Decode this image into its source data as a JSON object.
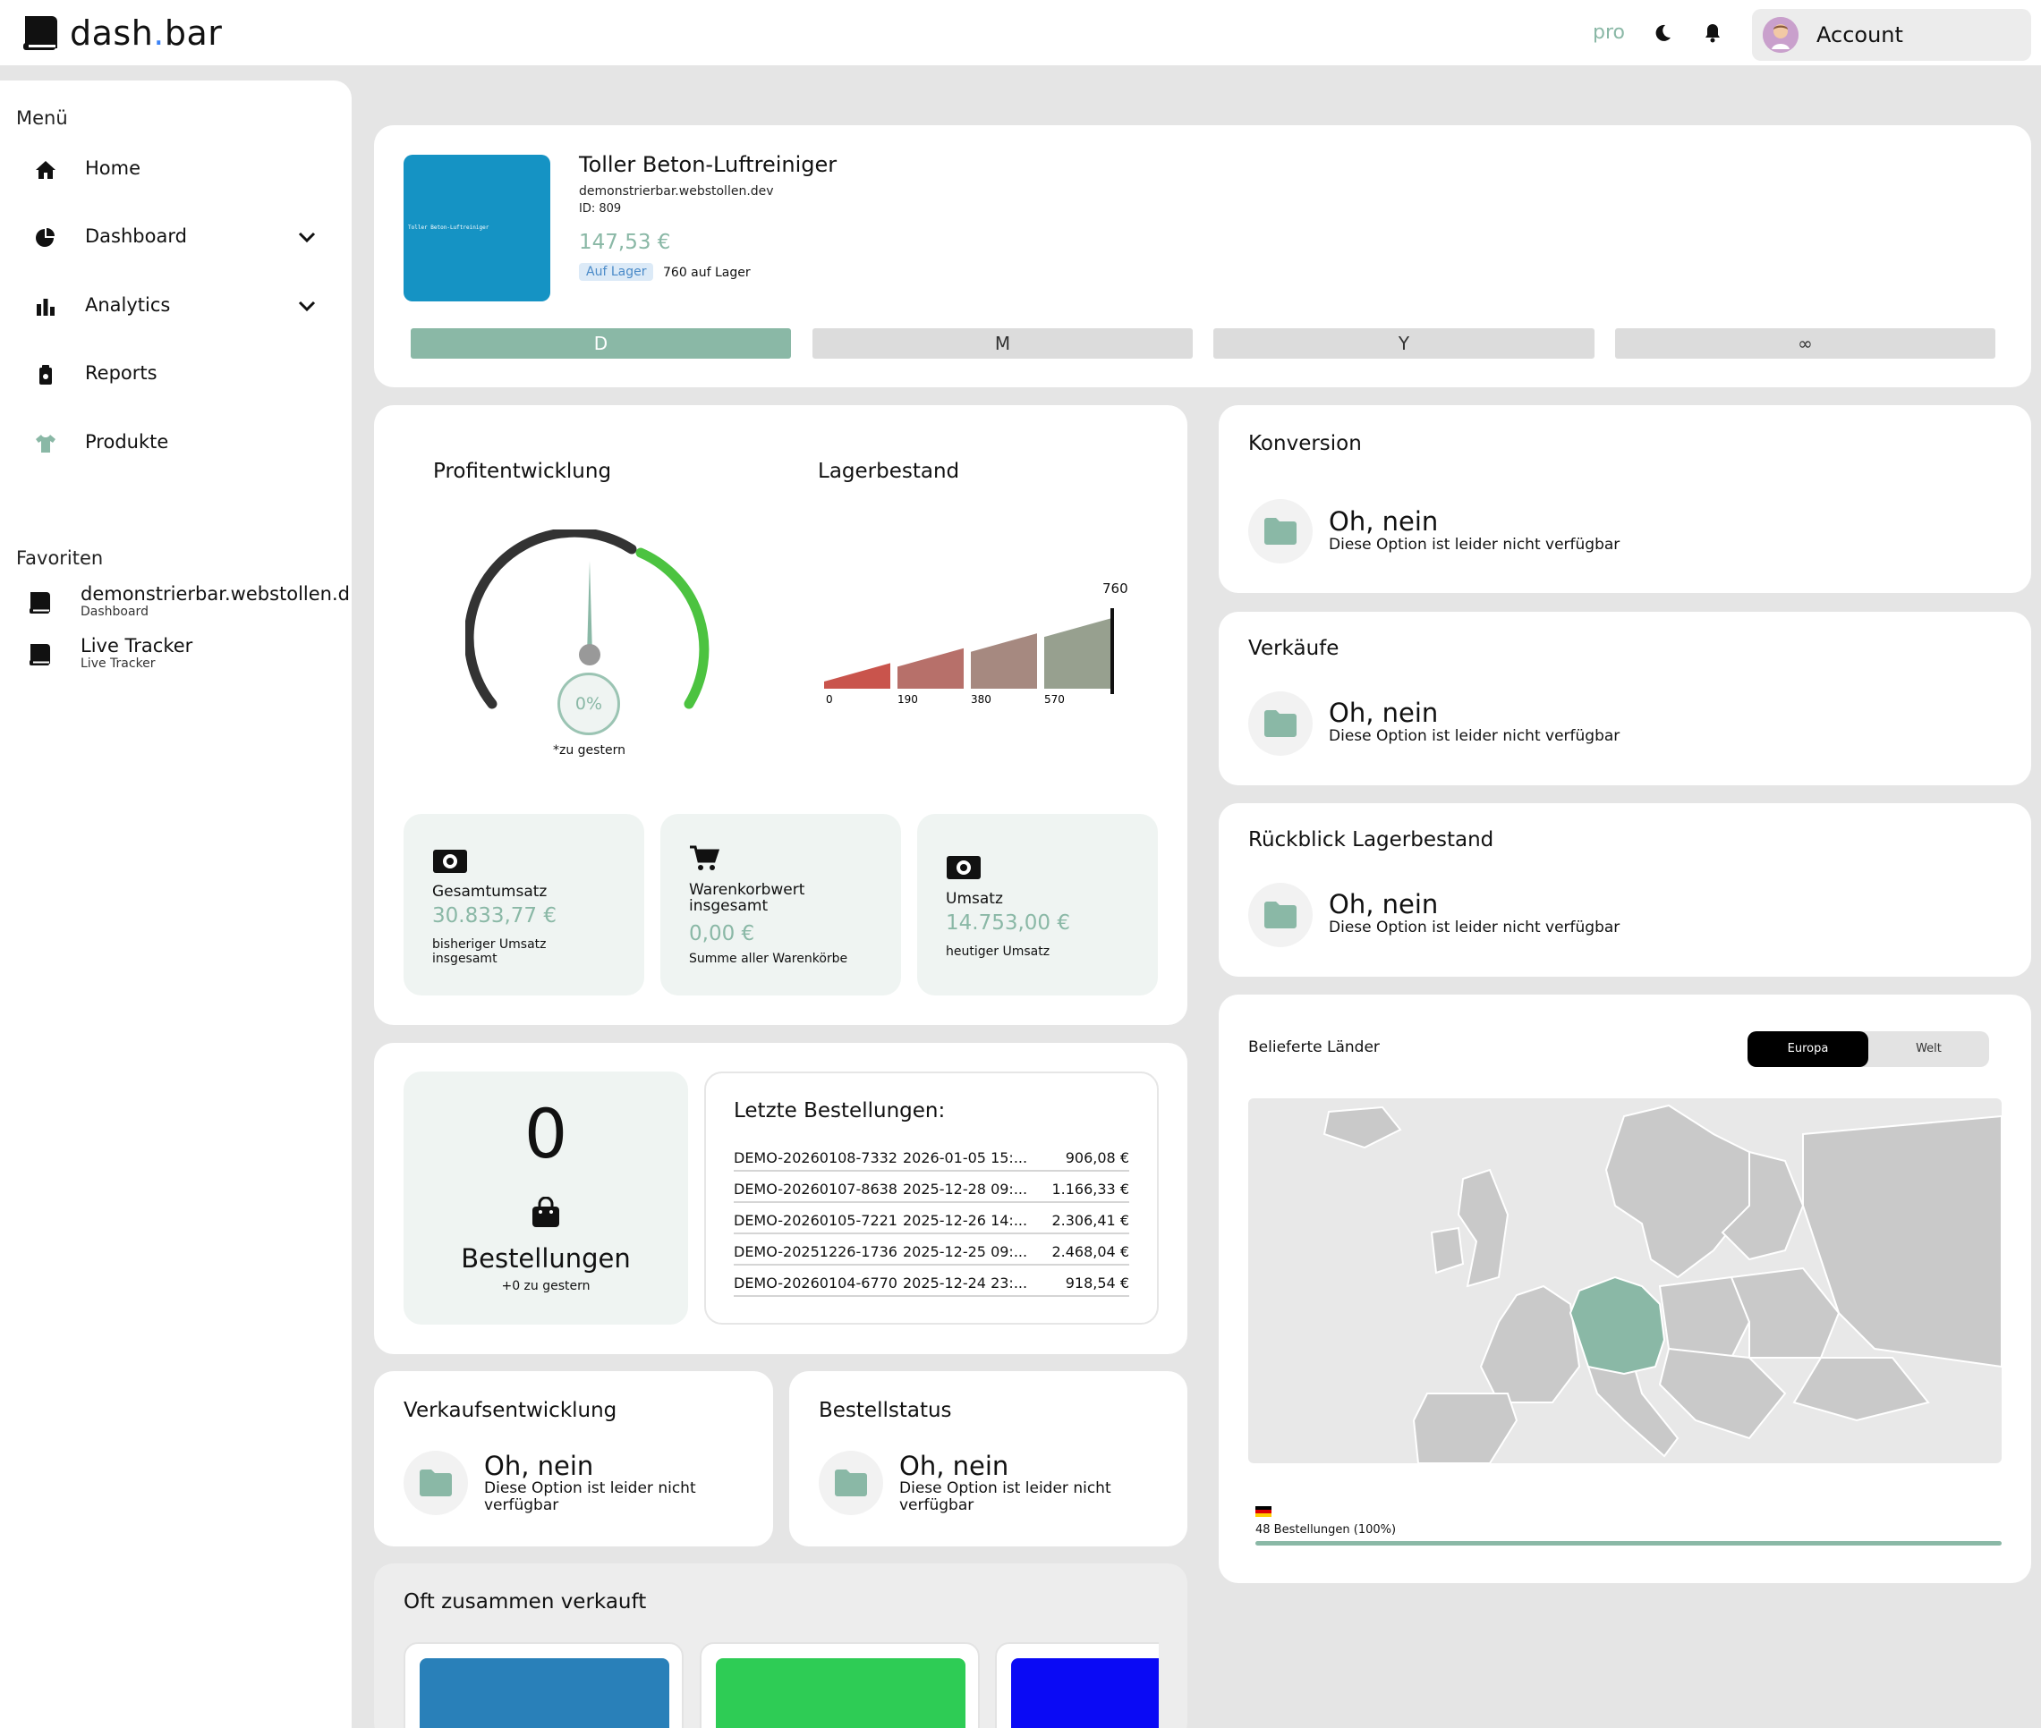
{
  "app": {
    "logo_left": "dash",
    "logo_dot": ".",
    "logo_right": "bar",
    "plan": "pro",
    "account_label": "Account"
  },
  "sidebar": {
    "menu_heading": "Menü",
    "items": [
      {
        "label": "Home",
        "icon": "home-icon"
      },
      {
        "label": "Dashboard",
        "icon": "pie-chart-icon"
      },
      {
        "label": "Analytics",
        "icon": "bar-chart-icon"
      },
      {
        "label": "Reports",
        "icon": "clipboard-icon"
      },
      {
        "label": "Produkte",
        "icon": "shirt-icon"
      }
    ],
    "favorites_heading": "Favoriten",
    "favorites": [
      {
        "title": "demonstrierbar.webstollen.de",
        "subtitle": "Dashboard"
      },
      {
        "title": "Live Tracker",
        "subtitle": "Live Tracker"
      }
    ]
  },
  "product": {
    "thumb_text": "Toller Beton-Luftreiniger",
    "name": "Toller Beton-Luftreiniger",
    "domain": "demonstrierbar.webstollen.dev",
    "id": "ID: 809",
    "price": "147,53 €",
    "stock_badge": "Auf Lager",
    "stock_text": "760 auf Lager",
    "tabs": [
      "D",
      "M",
      "Y",
      "∞"
    ],
    "active_tab": 0
  },
  "profit": {
    "title": "Profitentwicklung",
    "percent": "0%",
    "note": "*zu gestern"
  },
  "stock": {
    "title": "Lagerbestand",
    "current": "760",
    "ticks": [
      "0",
      "190",
      "380",
      "570"
    ],
    "chart_data": {
      "type": "bar",
      "categories": [
        "0",
        "190",
        "380",
        "570"
      ],
      "values": [
        190,
        380,
        570,
        760
      ],
      "current": 760,
      "ylim": [
        0,
        760
      ]
    }
  },
  "kpis": [
    {
      "label": "Gesamtumsatz",
      "value": "30.833,77 €",
      "sub": "bisheriger Umsatz insgesamt",
      "icon": "money-icon"
    },
    {
      "label": "Warenkorbwert insgesamt",
      "value": "0,00 €",
      "sub": "Summe aller Warenkörbe",
      "icon": "cart-icon"
    },
    {
      "label": "Umsatz",
      "value": "14.753,00 €",
      "sub": "heutiger Umsatz",
      "icon": "money-icon"
    }
  ],
  "orders": {
    "count": "0",
    "label": "Bestellungen",
    "delta": "+0 zu gestern"
  },
  "recent": {
    "title": "Letzte Bestellungen:",
    "rows": [
      {
        "id": "DEMO-20260108-7332",
        "date": "2026-01-05 15:...",
        "amount": "906,08 €"
      },
      {
        "id": "DEMO-20260107-8638",
        "date": "2025-12-28 09:...",
        "amount": "1.166,33 €"
      },
      {
        "id": "DEMO-20260105-7221",
        "date": "2025-12-26 14:...",
        "amount": "2.306,41 €"
      },
      {
        "id": "DEMO-20251226-1736",
        "date": "2025-12-25 09:...",
        "amount": "2.468,04 €"
      },
      {
        "id": "DEMO-20260104-6770",
        "date": "2025-12-24 23:...",
        "amount": "918,54 €"
      }
    ]
  },
  "unavailable": {
    "title": "Oh, nein",
    "text": "Diese Option ist leider nicht verfügbar"
  },
  "panels": {
    "konversion": "Konversion",
    "verkaeufe": "Verkäufe",
    "rueckblick": "Rückblick Lagerbestand",
    "verkaufsentwicklung": "Verkaufsentwicklung",
    "bestellstatus": "Bestellstatus",
    "oft": "Oft zusammen verkauft"
  },
  "countries": {
    "title": "Belieferte Länder",
    "seg": [
      "Europa",
      "Welt"
    ],
    "active": 0,
    "legend": "48 Bestellungen  (100%)",
    "share": 1.0,
    "colors": {
      "highlight": "#8ab8a6",
      "base": "#c9c9c9"
    }
  },
  "colors": {
    "accent": "#8ab8a6",
    "thumb1": "#2980b9",
    "thumb2": "#2ecc55",
    "thumb3": "#0a0af5",
    "product_thumb": "#1593c4"
  }
}
